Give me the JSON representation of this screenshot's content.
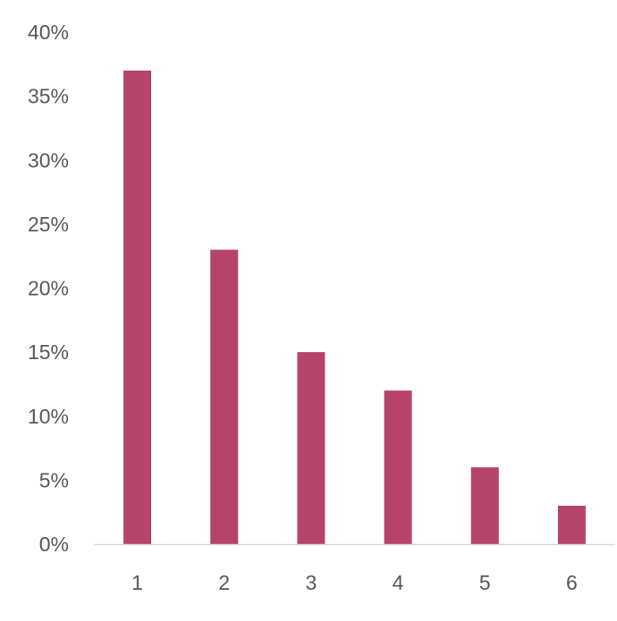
{
  "chart_data": {
    "type": "bar",
    "categories": [
      "1",
      "2",
      "3",
      "4",
      "5",
      "6"
    ],
    "values": [
      37,
      23,
      15,
      12,
      6,
      3
    ],
    "unit": "%",
    "title": "",
    "xlabel": "",
    "ylabel": "",
    "ylim": [
      0,
      40
    ],
    "y_ticks": [
      0,
      5,
      10,
      15,
      20,
      25,
      30,
      35,
      40
    ],
    "y_tick_labels": [
      "0%",
      "5%",
      "10%",
      "15%",
      "20%",
      "25%",
      "30%",
      "35%",
      "40%"
    ],
    "grid": false,
    "legend": "none",
    "bar_color": "#b5436a",
    "axis_color": "#d9d9d9",
    "label_color": "#595959"
  }
}
